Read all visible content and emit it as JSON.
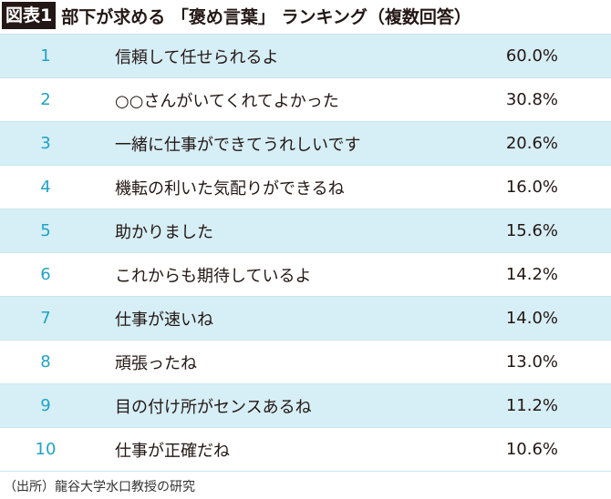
{
  "header": {
    "label": "図表1",
    "title": "部下が求める 「褒め言葉」 ランキング（複数回答）"
  },
  "table": {
    "rows": [
      [
        1,
        "信頼して任せられるよ",
        "60.0%"
      ],
      [
        2,
        "○○さんがいてくれてよかった",
        "30.8%"
      ],
      [
        3,
        "一緒に仕事ができてうれしいです",
        "20.6%"
      ],
      [
        4,
        "機転の利いた気配りができるね",
        "16.0%"
      ],
      [
        5,
        "助かりました",
        "15.6%"
      ],
      [
        6,
        "これからも期待しているよ",
        "14.2%"
      ],
      [
        7,
        "仕事が速いね",
        "14.0%"
      ],
      [
        8,
        "頑張ったね",
        "13.0%"
      ],
      [
        9,
        "目の付け所がセンスあるね",
        "11.2%"
      ],
      [
        10,
        "仕事が正確だね",
        "10.6%"
      ]
    ]
  },
  "footer": {
    "source": "（出所）龍谷大学水口教授の研究"
  }
}
